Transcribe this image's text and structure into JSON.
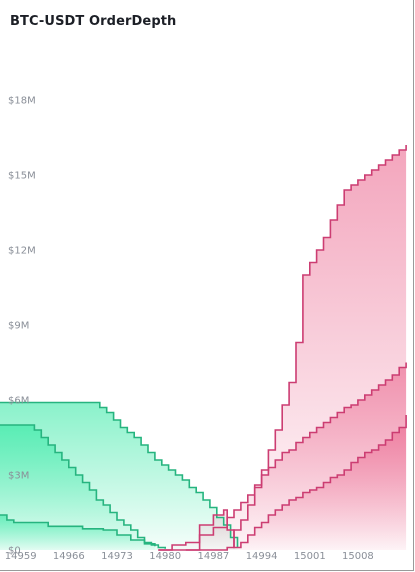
{
  "chart_data": {
    "type": "area",
    "title": "BTC-USDT OrderDepth",
    "xlabel": "",
    "ylabel": "",
    "x_ticks": [
      "14959",
      "14966",
      "14973",
      "14980",
      "14987",
      "14994",
      "15001",
      "15008"
    ],
    "x_tick_values": [
      14959,
      14966,
      14973,
      14980,
      14987,
      14994,
      15001,
      15008
    ],
    "y_ticks": [
      "$0",
      "$3M",
      "$6M",
      "$9M",
      "$12M",
      "$15M",
      "$18M"
    ],
    "y_tick_values": [
      0,
      3000000,
      6000000,
      9000000,
      12000000,
      15000000,
      18000000
    ],
    "xlim": [
      14956,
      15016
    ],
    "ylim": [
      0,
      21000000
    ],
    "grid": false,
    "legend": "none",
    "colors": {
      "bid_line": "#26b47f",
      "bid_fill": "#1ee69a",
      "ask_line": "#cc3d72",
      "ask_fill": "#e8527f"
    },
    "series": [
      {
        "side": "bid",
        "points": [
          [
            14956,
            5900000
          ],
          [
            14970,
            5900000
          ],
          [
            14970.5,
            5700000
          ],
          [
            14971.5,
            5500000
          ],
          [
            14972.5,
            5200000
          ],
          [
            14973.5,
            4900000
          ],
          [
            14974.5,
            4700000
          ],
          [
            14975.5,
            4500000
          ],
          [
            14976.5,
            4200000
          ],
          [
            14977.5,
            3900000
          ],
          [
            14978.5,
            3600000
          ],
          [
            14979.5,
            3400000
          ],
          [
            14980.5,
            3200000
          ],
          [
            14981.5,
            3000000
          ],
          [
            14982.5,
            2800000
          ],
          [
            14983.5,
            2500000
          ],
          [
            14984.5,
            2300000
          ],
          [
            14985.5,
            2000000
          ],
          [
            14986.5,
            1700000
          ],
          [
            14987.5,
            1300000
          ],
          [
            14988.5,
            1000000
          ],
          [
            14989.5,
            500000
          ],
          [
            14990.5,
            100000
          ]
        ]
      },
      {
        "side": "bid",
        "points": [
          [
            14956,
            5000000
          ],
          [
            14960,
            5000000
          ],
          [
            14961,
            4800000
          ],
          [
            14962,
            4500000
          ],
          [
            14963,
            4200000
          ],
          [
            14964,
            3900000
          ],
          [
            14965,
            3600000
          ],
          [
            14966,
            3300000
          ],
          [
            14967,
            3000000
          ],
          [
            14968,
            2700000
          ],
          [
            14969,
            2400000
          ],
          [
            14970,
            2000000
          ],
          [
            14971,
            1800000
          ],
          [
            14972,
            1500000
          ],
          [
            14973,
            1200000
          ],
          [
            14974,
            1000000
          ],
          [
            14975,
            800000
          ],
          [
            14976,
            500000
          ],
          [
            14977,
            300000
          ],
          [
            14978,
            200000
          ],
          [
            14979,
            100000
          ],
          [
            14980,
            50000
          ]
        ]
      },
      {
        "side": "bid",
        "points": [
          [
            14956,
            1400000
          ],
          [
            14957,
            1200000
          ],
          [
            14958,
            1100000
          ],
          [
            14963,
            950000
          ],
          [
            14968,
            850000
          ],
          [
            14971,
            800000
          ],
          [
            14973,
            600000
          ],
          [
            14975,
            400000
          ],
          [
            14977,
            250000
          ],
          [
            14978.5,
            150000
          ]
        ]
      },
      {
        "side": "ask",
        "points": [
          [
            14979,
            0
          ],
          [
            14980,
            0
          ],
          [
            14984,
            0
          ],
          [
            14988,
            0
          ],
          [
            14989,
            100000
          ],
          [
            14990,
            800000
          ],
          [
            14991,
            1200000
          ],
          [
            14992,
            1800000
          ],
          [
            14993,
            2500000
          ],
          [
            14994,
            3200000
          ],
          [
            14995,
            4000000
          ],
          [
            14996,
            4800000
          ],
          [
            14997,
            5800000
          ],
          [
            14998,
            6700000
          ],
          [
            14999,
            8300000
          ],
          [
            15000,
            11000000
          ],
          [
            15001,
            11500000
          ],
          [
            15002,
            12000000
          ],
          [
            15003,
            12500000
          ],
          [
            15004,
            13200000
          ],
          [
            15005,
            13800000
          ],
          [
            15006,
            14400000
          ],
          [
            15007,
            14600000
          ],
          [
            15008,
            14800000
          ],
          [
            15009,
            15000000
          ],
          [
            15010,
            15200000
          ],
          [
            15011,
            15400000
          ],
          [
            15012,
            15600000
          ],
          [
            15013,
            15800000
          ],
          [
            15014,
            16000000
          ],
          [
            15015,
            16200000
          ]
        ]
      },
      {
        "side": "ask",
        "points": [
          [
            14979,
            0
          ],
          [
            14981,
            200000
          ],
          [
            14983,
            300000
          ],
          [
            14985,
            600000
          ],
          [
            14987,
            900000
          ],
          [
            14989,
            1300000
          ],
          [
            14990,
            1600000
          ],
          [
            14991,
            1900000
          ],
          [
            14992,
            2200000
          ],
          [
            14993,
            2600000
          ],
          [
            14994,
            3000000
          ],
          [
            14995,
            3300000
          ],
          [
            14996,
            3600000
          ],
          [
            14997,
            3900000
          ],
          [
            14998,
            4000000
          ],
          [
            14999,
            4300000
          ],
          [
            15000,
            4500000
          ],
          [
            15001,
            4700000
          ],
          [
            15002,
            4900000
          ],
          [
            15003,
            5100000
          ],
          [
            15004,
            5300000
          ],
          [
            15005,
            5500000
          ],
          [
            15006,
            5700000
          ],
          [
            15007,
            5800000
          ],
          [
            15008,
            6000000
          ],
          [
            15009,
            6200000
          ],
          [
            15010,
            6400000
          ],
          [
            15011,
            6600000
          ],
          [
            15012,
            6800000
          ],
          [
            15013,
            7000000
          ],
          [
            15014,
            7300000
          ],
          [
            15015,
            7500000
          ]
        ]
      },
      {
        "side": "ask",
        "points": [
          [
            14983,
            0
          ],
          [
            14985,
            1000000
          ],
          [
            14987,
            1400000
          ],
          [
            14988.5,
            1600000
          ],
          [
            14989,
            800000
          ],
          [
            14990,
            100000
          ],
          [
            14991,
            300000
          ],
          [
            14992,
            600000
          ],
          [
            14993,
            900000
          ],
          [
            14994,
            1100000
          ],
          [
            14995,
            1400000
          ],
          [
            14996,
            1600000
          ],
          [
            14997,
            1800000
          ],
          [
            14998,
            2000000
          ],
          [
            14999,
            2100000
          ],
          [
            15000,
            2300000
          ],
          [
            15001,
            2400000
          ],
          [
            15002,
            2500000
          ],
          [
            15003,
            2700000
          ],
          [
            15004,
            2900000
          ],
          [
            15005,
            3000000
          ],
          [
            15006,
            3200000
          ],
          [
            15007,
            3500000
          ],
          [
            15008,
            3700000
          ],
          [
            15009,
            3900000
          ],
          [
            15010,
            4000000
          ],
          [
            15011,
            4200000
          ],
          [
            15012,
            4400000
          ],
          [
            15013,
            4700000
          ],
          [
            15014,
            4900000
          ],
          [
            15015,
            5400000
          ]
        ]
      }
    ]
  }
}
